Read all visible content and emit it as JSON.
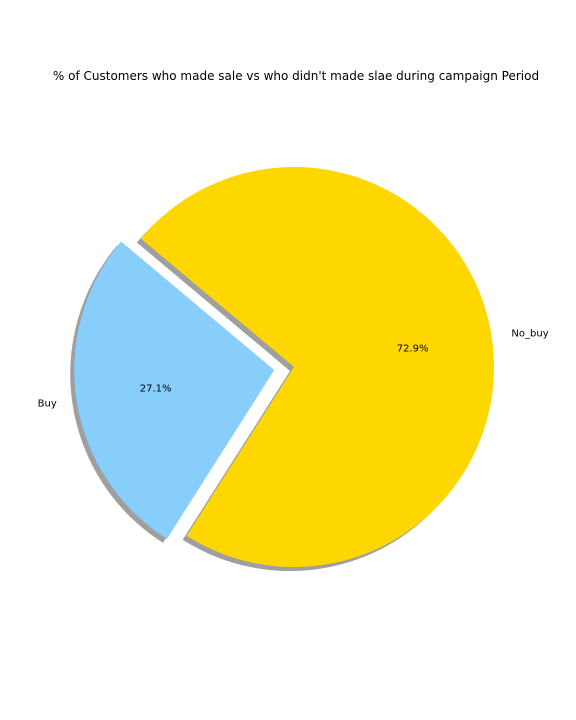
{
  "chart_data": {
    "type": "pie",
    "title": "% of Customers who made sale vs who didn't made slae during campaign Period",
    "slices": [
      {
        "label": "Buy",
        "value": 27.1,
        "pct_label": "27.1%",
        "color": "#87cefa",
        "exploded": true
      },
      {
        "label": "No_buy",
        "value": 72.9,
        "pct_label": "72.9%",
        "color": "#ffd700",
        "exploded": false
      }
    ],
    "shadow": true,
    "shadow_color": "#7f7f7f"
  }
}
